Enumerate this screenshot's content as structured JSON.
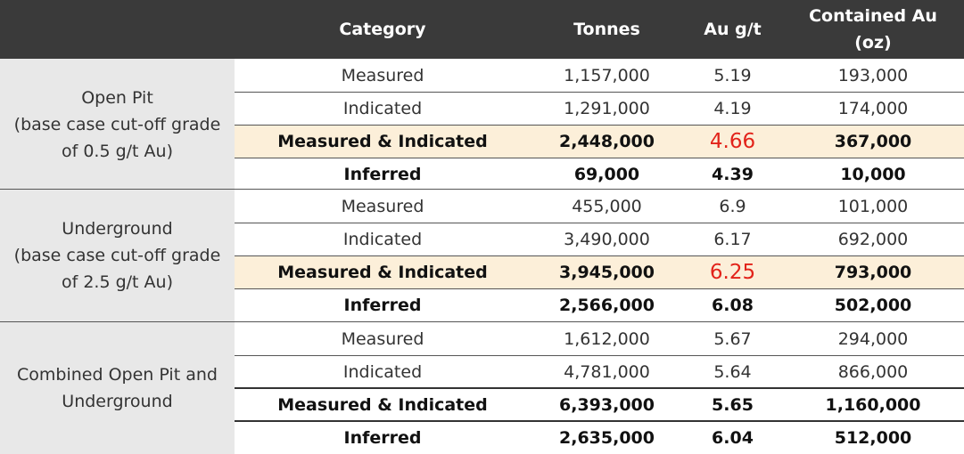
{
  "header": {
    "category": "Category",
    "tonnes": "Tonnes",
    "au_grade": "Au g/t",
    "contained_au_line1": "Contained Au",
    "contained_au_line2": "(oz)"
  },
  "groups": [
    {
      "label_lines": [
        "Open Pit",
        "(base case cut-off grade",
        "of 0.5 g/t Au)"
      ],
      "rows": [
        {
          "category": "Measured",
          "tonnes": "1,157,000",
          "au": "5.19",
          "contained": "193,000"
        },
        {
          "category": "Indicated",
          "tonnes": "1,291,000",
          "au": "4.19",
          "contained": "174,000"
        },
        {
          "category": "Measured & Indicated",
          "tonnes": "2,448,000",
          "au": "4.66",
          "contained": "367,000"
        },
        {
          "category": "Inferred",
          "tonnes": "69,000",
          "au": "4.39",
          "contained": "10,000"
        }
      ]
    },
    {
      "label_lines": [
        "Underground",
        "(base case cut-off grade",
        "of 2.5 g/t Au)"
      ],
      "rows": [
        {
          "category": "Measured",
          "tonnes": "455,000",
          "au": "6.9",
          "contained": "101,000"
        },
        {
          "category": "Indicated",
          "tonnes": "3,490,000",
          "au": "6.17",
          "contained": "692,000"
        },
        {
          "category": "Measured & Indicated",
          "tonnes": "3,945,000",
          "au": "6.25",
          "contained": "793,000"
        },
        {
          "category": "Inferred",
          "tonnes": "2,566,000",
          "au": "6.08",
          "contained": "502,000"
        }
      ]
    },
    {
      "label_lines": [
        "Combined Open Pit and",
        "Underground"
      ],
      "rows": [
        {
          "category": "Measured",
          "tonnes": "1,612,000",
          "au": "5.67",
          "contained": "294,000"
        },
        {
          "category": "Indicated",
          "tonnes": "4,781,000",
          "au": "5.64",
          "contained": "866,000"
        },
        {
          "category": "Measured & Indicated",
          "tonnes": "6,393,000",
          "au": "5.65",
          "contained": "1,160,000"
        },
        {
          "category": "Inferred",
          "tonnes": "2,635,000",
          "au": "6.04",
          "contained": "512,000"
        }
      ]
    }
  ],
  "colors": {
    "header_bg": "#3a3a3a",
    "group_label_bg": "#e8e8e8",
    "highlight_row_bg": "#fcefd9",
    "highlight_grade_text": "#e2231a"
  }
}
